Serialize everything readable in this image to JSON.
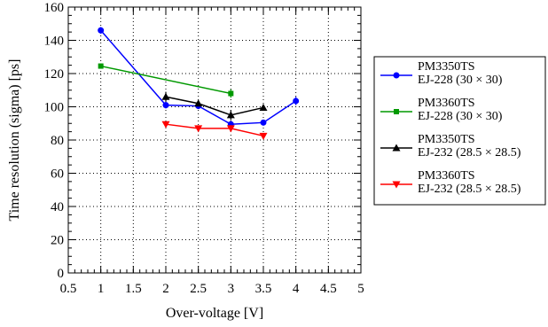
{
  "chart_data": {
    "type": "line",
    "xlabel": "Over-voltage [V]",
    "ylabel": "Time resolution (sigma) [ps]",
    "xlim": [
      0.5,
      5
    ],
    "ylim": [
      0,
      160
    ],
    "xticks": [
      "0.5",
      "1",
      "1.5",
      "2",
      "2.5",
      "3",
      "3.5",
      "4",
      "4.5",
      "5"
    ],
    "yticks": [
      "0",
      "20",
      "40",
      "60",
      "80",
      "100",
      "120",
      "140",
      "160"
    ],
    "grid": true,
    "legend_position": "right",
    "series": [
      {
        "name_line1": "PM3350TS",
        "name_line2": "EJ-228 (30 × 30)",
        "color": "#0000ff",
        "marker": "circle",
        "x": [
          1,
          2,
          2.5,
          3,
          3.5,
          4
        ],
        "y": [
          146,
          101,
          100.5,
          89.5,
          90.5,
          103.5
        ],
        "err": [
          2,
          2,
          1.5,
          2,
          1.5,
          2.5
        ]
      },
      {
        "name_line1": "PM3360TS",
        "name_line2": "EJ-228 (30 × 30)",
        "color": "#009900",
        "marker": "square",
        "x": [
          1,
          3
        ],
        "y": [
          124.5,
          108
        ],
        "err": [
          1.5,
          2.5
        ]
      },
      {
        "name_line1": "PM3350TS",
        "name_line2": "EJ-232 (28.5 × 28.5)",
        "color": "#000000",
        "marker": "triangle-up",
        "x": [
          2,
          2.5,
          3,
          3.5
        ],
        "y": [
          106,
          102,
          95,
          99.5
        ],
        "err": [
          3,
          1.5,
          3,
          1.5
        ]
      },
      {
        "name_line1": "PM3360TS",
        "name_line2": "EJ-232 (28.5 × 28.5)",
        "color": "#ff0000",
        "marker": "triangle-down",
        "x": [
          2,
          2.5,
          3,
          3.5
        ],
        "y": [
          89.5,
          87,
          87,
          82.5
        ],
        "err": [
          1,
          1,
          2,
          1
        ]
      }
    ]
  }
}
